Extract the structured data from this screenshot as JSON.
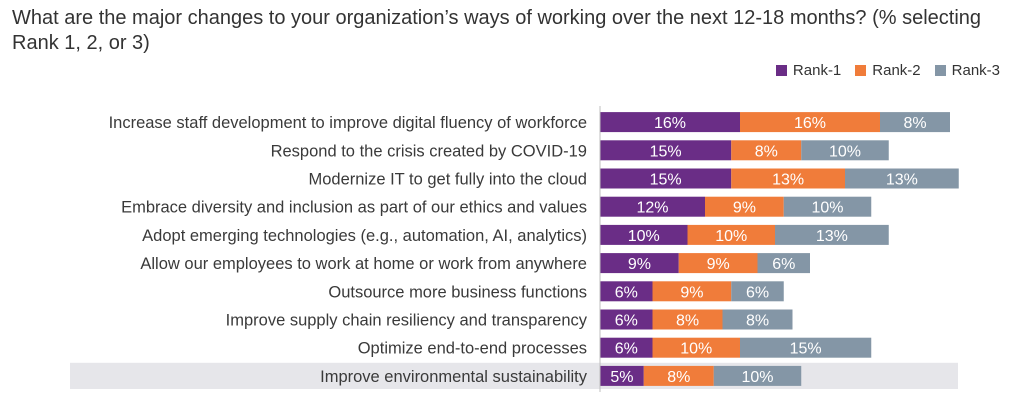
{
  "chart_data": {
    "type": "bar",
    "orientation": "horizontal",
    "stacked": true,
    "title": "What are the major changes to your organization’s ways of working over the next 12-18 months? (% selecting Rank 1, 2, or 3)",
    "categories": [
      "Increase staff development to improve digital fluency of workforce",
      "Respond to the crisis created by COVID-19",
      "Modernize IT to get fully into the cloud",
      "Embrace diversity and inclusion as part of our ethics and values",
      "Adopt emerging technologies (e.g., automation, AI, analytics)",
      "Allow our employees to work at home or work from anywhere",
      "Outsource more business functions",
      "Improve supply chain resiliency and transparency",
      "Optimize end-to-end processes",
      "Improve environmental sustainability"
    ],
    "series": [
      {
        "name": "Rank-1",
        "color": "#6a2d86",
        "values": [
          16,
          15,
          15,
          12,
          10,
          9,
          6,
          6,
          6,
          5
        ]
      },
      {
        "name": "Rank-2",
        "color": "#f07c3a",
        "values": [
          16,
          8,
          13,
          9,
          10,
          9,
          9,
          8,
          10,
          8
        ]
      },
      {
        "name": "Rank-3",
        "color": "#8496a6",
        "values": [
          8,
          10,
          13,
          10,
          13,
          6,
          6,
          8,
          15,
          10
        ]
      }
    ],
    "value_suffix": "%",
    "highlighted_category": "Improve environmental sustainability",
    "highlight_color": "#e6e6ea",
    "legend_position": "top-right",
    "grid": false
  }
}
